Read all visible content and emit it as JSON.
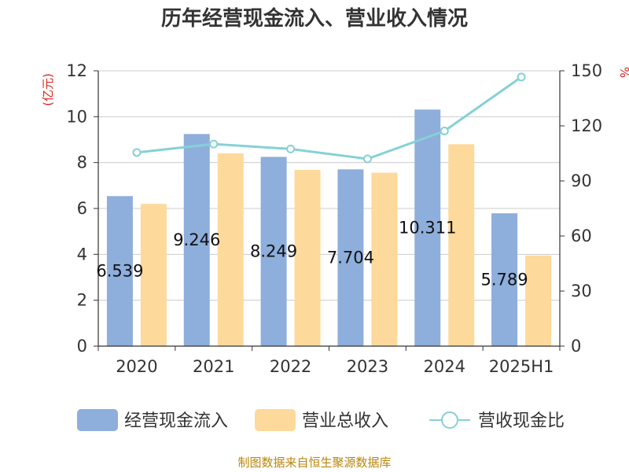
{
  "chart_data": {
    "type": "bar",
    "title": "历年经营现金流入、营业收入情况",
    "categories": [
      "2020",
      "2021",
      "2022",
      "2023",
      "2024",
      "2025H1"
    ],
    "y_left": {
      "unit_label": "(亿元)",
      "range": [
        0,
        12
      ],
      "ticks": [
        "0",
        "2",
        "4",
        "6",
        "8",
        "10",
        "12"
      ]
    },
    "y_right": {
      "unit_label": "%",
      "range": [
        0,
        150
      ],
      "ticks": [
        "0",
        "30",
        "60",
        "90",
        "120",
        "150"
      ]
    },
    "grid": true,
    "legend_position": "bottom",
    "series": [
      {
        "name": "经营现金流入",
        "kind": "bar",
        "axis": "left",
        "color": "#8eaedb",
        "values": [
          6.539,
          9.246,
          8.249,
          7.704,
          10.311,
          5.789
        ],
        "labels": [
          "6.539",
          "9.246",
          "8.249",
          "7.704",
          "10.311",
          "5.789"
        ]
      },
      {
        "name": "营业总收入",
        "kind": "bar",
        "axis": "left",
        "color": "#fdd99b",
        "values": [
          6.2,
          8.4,
          7.68,
          7.56,
          8.8,
          3.95
        ]
      },
      {
        "name": "营收现金比",
        "kind": "line",
        "axis": "right",
        "color": "#85d1d6",
        "values": [
          105.5,
          110.1,
          107.4,
          102.0,
          117.2,
          146.6
        ]
      }
    ],
    "source": "制图数据来自恒生聚源数据库"
  }
}
